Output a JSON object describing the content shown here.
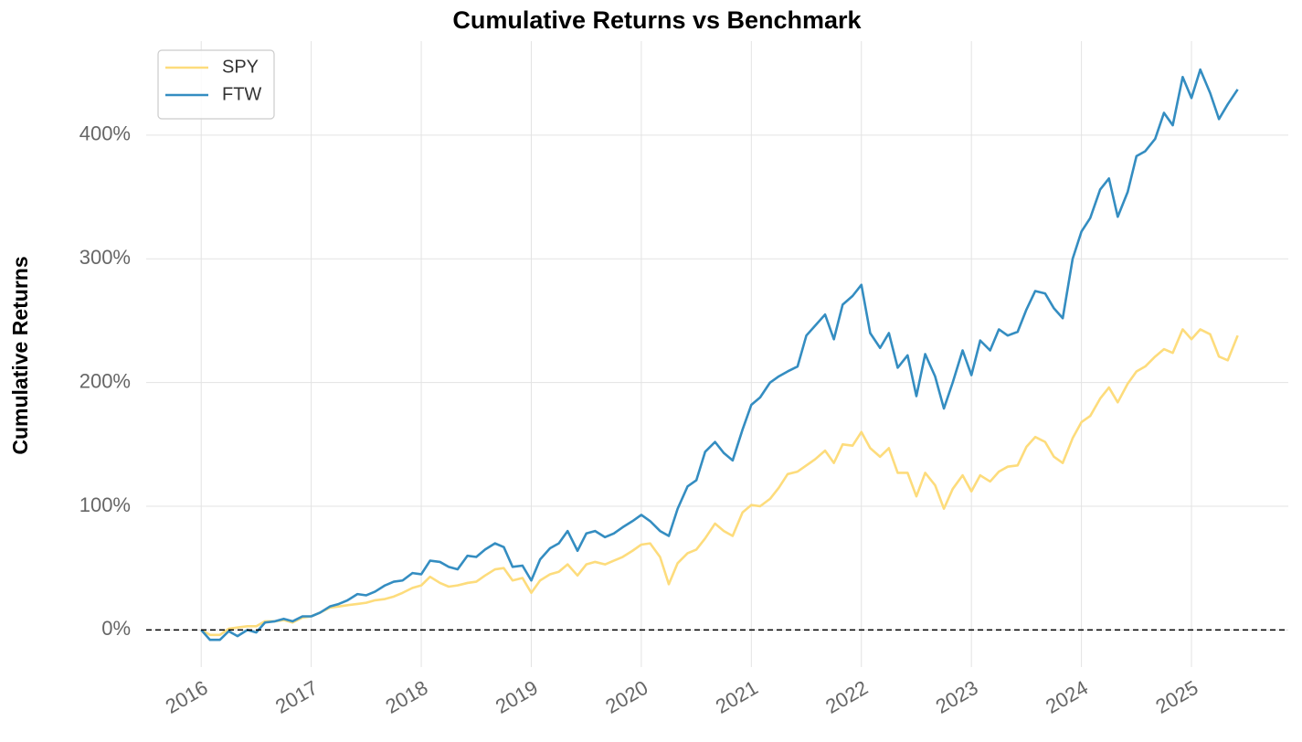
{
  "chart_data": {
    "type": "line",
    "title": "Cumulative Returns vs Benchmark",
    "y_label": "Cumulative Returns",
    "legend": "upper left",
    "grid": true,
    "xlim": [
      2015.5,
      2025.88
    ],
    "xticks": [
      2016,
      2017,
      2018,
      2019,
      2020,
      2021,
      2022,
      2023,
      2024,
      2025
    ],
    "ylim": [
      -30,
      476
    ],
    "yticks": [
      {
        "value": 0,
        "label": "0%"
      },
      {
        "value": 100,
        "label": "100%"
      },
      {
        "value": 200,
        "label": "200%"
      },
      {
        "value": 300,
        "label": "300%"
      },
      {
        "value": 400,
        "label": "400%"
      }
    ],
    "x": [
      2016,
      2016.08,
      2016.17,
      2016.25,
      2016.33,
      2016.42,
      2016.5,
      2016.58,
      2016.67,
      2016.75,
      2016.83,
      2016.92,
      2017,
      2017.08,
      2017.17,
      2017.25,
      2017.33,
      2017.42,
      2017.5,
      2017.58,
      2017.67,
      2017.75,
      2017.83,
      2017.92,
      2018,
      2018.08,
      2018.17,
      2018.25,
      2018.33,
      2018.42,
      2018.5,
      2018.58,
      2018.67,
      2018.75,
      2018.83,
      2018.92,
      2019,
      2019.08,
      2019.17,
      2019.25,
      2019.33,
      2019.42,
      2019.5,
      2019.58,
      2019.67,
      2019.75,
      2019.83,
      2019.92,
      2020,
      2020.08,
      2020.17,
      2020.25,
      2020.33,
      2020.42,
      2020.5,
      2020.58,
      2020.67,
      2020.75,
      2020.83,
      2020.92,
      2021,
      2021.08,
      2021.17,
      2021.25,
      2021.33,
      2021.42,
      2021.5,
      2021.58,
      2021.67,
      2021.75,
      2021.83,
      2021.92,
      2022,
      2022.08,
      2022.17,
      2022.25,
      2022.33,
      2022.42,
      2022.5,
      2022.58,
      2022.67,
      2022.75,
      2022.83,
      2022.92,
      2023,
      2023.08,
      2023.17,
      2023.25,
      2023.33,
      2023.42,
      2023.5,
      2023.58,
      2023.67,
      2023.75,
      2023.83,
      2023.92,
      2024,
      2024.08,
      2024.17,
      2024.25,
      2024.33,
      2024.42,
      2024.5,
      2024.58,
      2024.67,
      2024.75,
      2024.83,
      2024.92,
      2025,
      2025.08,
      2025.17,
      2025.25,
      2025.33,
      2025.42
    ],
    "series": [
      {
        "name": "SPY",
        "color": "#fddc7c",
        "values": [
          0,
          -4,
          -4,
          1,
          2,
          3,
          3,
          7,
          7,
          8,
          6,
          10,
          11,
          14,
          18,
          19,
          20,
          21,
          22,
          24,
          25,
          27,
          30,
          34,
          36,
          43,
          38,
          35,
          36,
          38,
          39,
          44,
          49,
          50,
          40,
          42,
          30,
          40,
          45,
          47,
          53,
          44,
          53,
          55,
          53,
          56,
          59,
          64,
          69,
          70,
          59,
          37,
          54,
          62,
          65,
          74,
          86,
          80,
          76,
          95,
          101,
          100,
          106,
          115,
          126,
          128,
          133,
          138,
          145,
          135,
          150,
          149,
          160,
          147,
          140,
          147,
          127,
          127,
          108,
          127,
          117,
          98,
          114,
          125,
          112,
          125,
          120,
          128,
          132,
          133,
          148,
          156,
          152,
          140,
          135,
          155,
          168,
          173,
          187,
          196,
          184,
          199,
          209,
          213,
          221,
          227,
          224,
          243,
          235,
          243,
          239,
          221,
          218,
          238
        ]
      },
      {
        "name": "FTW",
        "color": "#348dc1",
        "values": [
          0,
          -8,
          -8,
          -1,
          -5,
          0,
          -2,
          6,
          7,
          9,
          7,
          11,
          11,
          14,
          19,
          21,
          24,
          29,
          28,
          31,
          36,
          39,
          40,
          46,
          45,
          56,
          55,
          51,
          49,
          60,
          59,
          65,
          70,
          67,
          51,
          52,
          40,
          57,
          66,
          70,
          80,
          64,
          78,
          80,
          75,
          78,
          83,
          88,
          93,
          88,
          80,
          76,
          98,
          116,
          121,
          144,
          152,
          143,
          137,
          162,
          182,
          188,
          200,
          205,
          209,
          213,
          238,
          246,
          255,
          235,
          263,
          270,
          279,
          240,
          228,
          240,
          212,
          222,
          189,
          223,
          205,
          179,
          200,
          226,
          206,
          234,
          226,
          243,
          238,
          241,
          259,
          274,
          272,
          260,
          252,
          300,
          322,
          333,
          356,
          365,
          334,
          354,
          383,
          387,
          397,
          418,
          408,
          447,
          430,
          453,
          434,
          413,
          425,
          437
        ]
      }
    ]
  }
}
